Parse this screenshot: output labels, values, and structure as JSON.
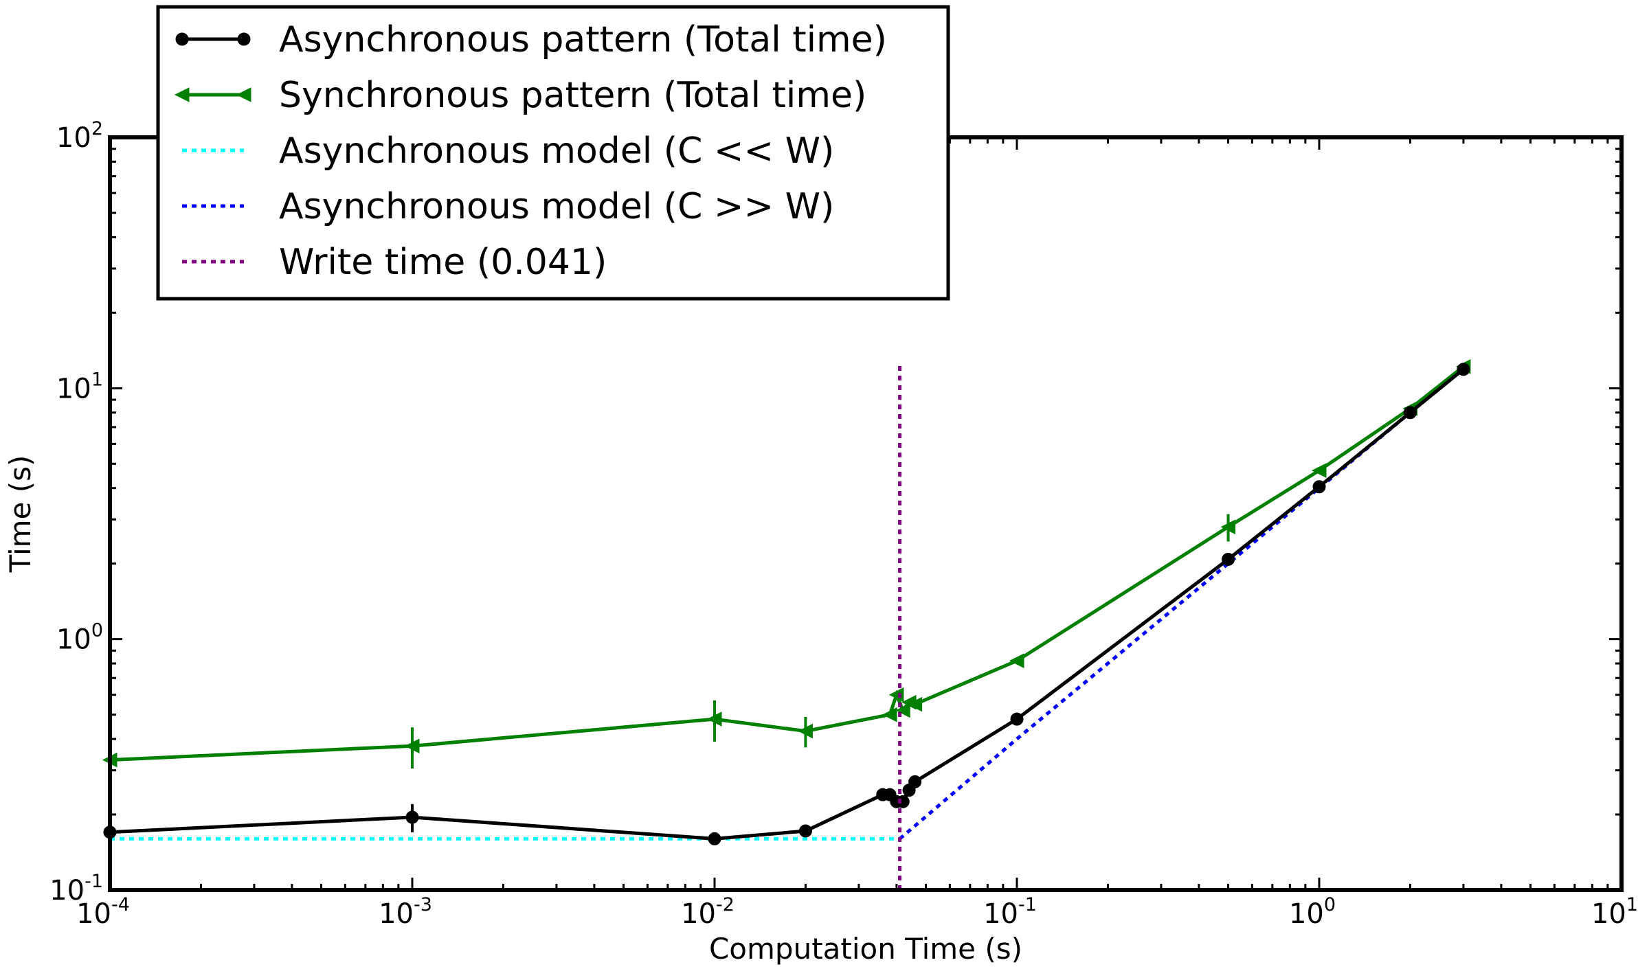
{
  "chart_data": {
    "type": "line",
    "title": "",
    "xlabel": "Computation Time (s)",
    "ylabel": "Time (s)",
    "x_scale": "log",
    "y_scale": "log",
    "xlim": [
      0.0001,
      10
    ],
    "ylim": [
      0.1,
      100
    ],
    "grid": false,
    "legend_position": "upper-left",
    "x_ticks": [
      {
        "value": 0.0001,
        "base": "10",
        "exp": "-4"
      },
      {
        "value": 0.001,
        "base": "10",
        "exp": "-3"
      },
      {
        "value": 0.01,
        "base": "10",
        "exp": "-2"
      },
      {
        "value": 0.1,
        "base": "10",
        "exp": "-1"
      },
      {
        "value": 1,
        "base": "10",
        "exp": "0"
      },
      {
        "value": 10,
        "base": "10",
        "exp": "1"
      }
    ],
    "y_ticks": [
      {
        "value": 0.1,
        "base": "10",
        "exp": "-1"
      },
      {
        "value": 1,
        "base": "10",
        "exp": "0"
      },
      {
        "value": 10,
        "base": "10",
        "exp": "1"
      },
      {
        "value": 100,
        "base": "10",
        "exp": "2"
      }
    ],
    "series": [
      {
        "name": "Asynchronous pattern (Total time)",
        "color": "#000000",
        "marker": "circle",
        "line_style": "solid",
        "x": [
          0.0001,
          0.001,
          0.01,
          0.02,
          0.036,
          0.038,
          0.04,
          0.042,
          0.044,
          0.046,
          0.1,
          0.5,
          1.0,
          2.0,
          3.0
        ],
        "y": [
          0.17,
          0.195,
          0.16,
          0.172,
          0.24,
          0.24,
          0.225,
          0.225,
          0.25,
          0.27,
          0.48,
          2.08,
          4.05,
          8.0,
          11.9
        ],
        "yerr": [
          0.0,
          0.025,
          0.0,
          0.0,
          0.0,
          0.0,
          0.0,
          0.0,
          0.0,
          0.0,
          0.0,
          0.0,
          0.0,
          0.0,
          0.0
        ]
      },
      {
        "name": "Synchronous pattern (Total time)",
        "color": "#008000",
        "marker": "triangle-left",
        "line_style": "solid",
        "x": [
          0.0001,
          0.001,
          0.01,
          0.02,
          0.038,
          0.04,
          0.042,
          0.044,
          0.046,
          0.1,
          0.5,
          1.0,
          2.0,
          3.0
        ],
        "y": [
          0.33,
          0.375,
          0.48,
          0.43,
          0.5,
          0.6,
          0.52,
          0.56,
          0.55,
          0.82,
          2.8,
          4.7,
          8.3,
          12.2
        ],
        "yerr": [
          0.0,
          0.07,
          0.09,
          0.06,
          0.0,
          0.0,
          0.0,
          0.0,
          0.0,
          0.0,
          0.35,
          0.0,
          0.0,
          0.0
        ]
      },
      {
        "name": "Asynchronous model (C << W)",
        "color": "#00ffff",
        "marker": "none",
        "line_style": "dotted",
        "x": [
          0.0001,
          0.041
        ],
        "y": [
          0.16,
          0.16
        ]
      },
      {
        "name": "Asynchronous model (C >> W)",
        "color": "#0000ff",
        "marker": "none",
        "line_style": "dotted",
        "x": [
          0.041,
          0.1,
          0.5,
          1.0,
          2.0,
          3.0
        ],
        "y": [
          0.16,
          0.4,
          2.0,
          4.0,
          8.0,
          12.0
        ]
      },
      {
        "name": "Write time (0.041)",
        "color": "#800080",
        "marker": "none",
        "line_style": "dotted",
        "x": [
          0.041,
          0.041
        ],
        "y": [
          0.1,
          12.5
        ]
      }
    ]
  }
}
